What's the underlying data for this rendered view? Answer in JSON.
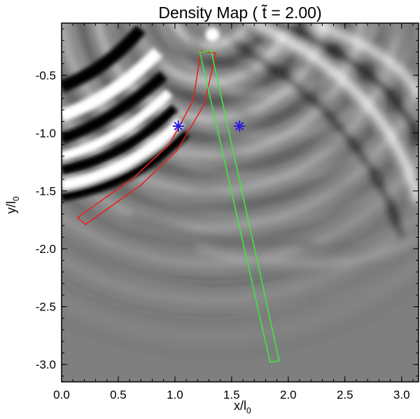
{
  "chart_data": {
    "type": "heatmap",
    "title": "Density Map ( t̃ = 2.00)",
    "xlabel": "x/l",
    "xlabel_sub": "0",
    "ylabel": "y/l",
    "ylabel_sub": "0",
    "xlim": [
      0.0,
      3.15
    ],
    "ylim": [
      -3.15,
      -0.05
    ],
    "x_ticks": [
      0.0,
      0.5,
      1.0,
      1.5,
      2.0,
      2.5,
      3.0
    ],
    "x_tick_labels": [
      "0.0",
      "0.5",
      "1.0",
      "1.5",
      "2.0",
      "2.5",
      "3.0"
    ],
    "y_ticks": [
      -0.5,
      -1.0,
      -1.5,
      -2.0,
      -2.5,
      -3.0
    ],
    "y_tick_labels": [
      "-0.5",
      "-1.0",
      "-1.5",
      "-2.0",
      "-2.5",
      "-3.0"
    ],
    "colormap": "grayscale",
    "colors": {
      "background": "#7f7f7f",
      "red_box": "#e8231c",
      "green_box": "#3ee83e",
      "markers": "#2a1be0"
    },
    "markers": [
      {
        "name": "asterisk",
        "x": 1.03,
        "y": -0.94
      },
      {
        "name": "asterisk",
        "x": 1.57,
        "y": -0.94
      }
    ],
    "green_box": [
      [
        1.22,
        -0.3
      ],
      [
        1.32,
        -0.29
      ],
      [
        1.92,
        -2.97
      ],
      [
        1.84,
        -2.98
      ]
    ],
    "red_box": [
      [
        1.23,
        -0.29
      ],
      [
        1.36,
        -0.31
      ],
      [
        1.26,
        -0.75
      ],
      [
        1.02,
        -1.15
      ],
      [
        0.7,
        -1.45
      ],
      [
        0.21,
        -1.79
      ],
      [
        0.14,
        -1.73
      ],
      [
        0.63,
        -1.39
      ],
      [
        0.95,
        -1.1
      ],
      [
        1.16,
        -0.72
      ]
    ]
  }
}
